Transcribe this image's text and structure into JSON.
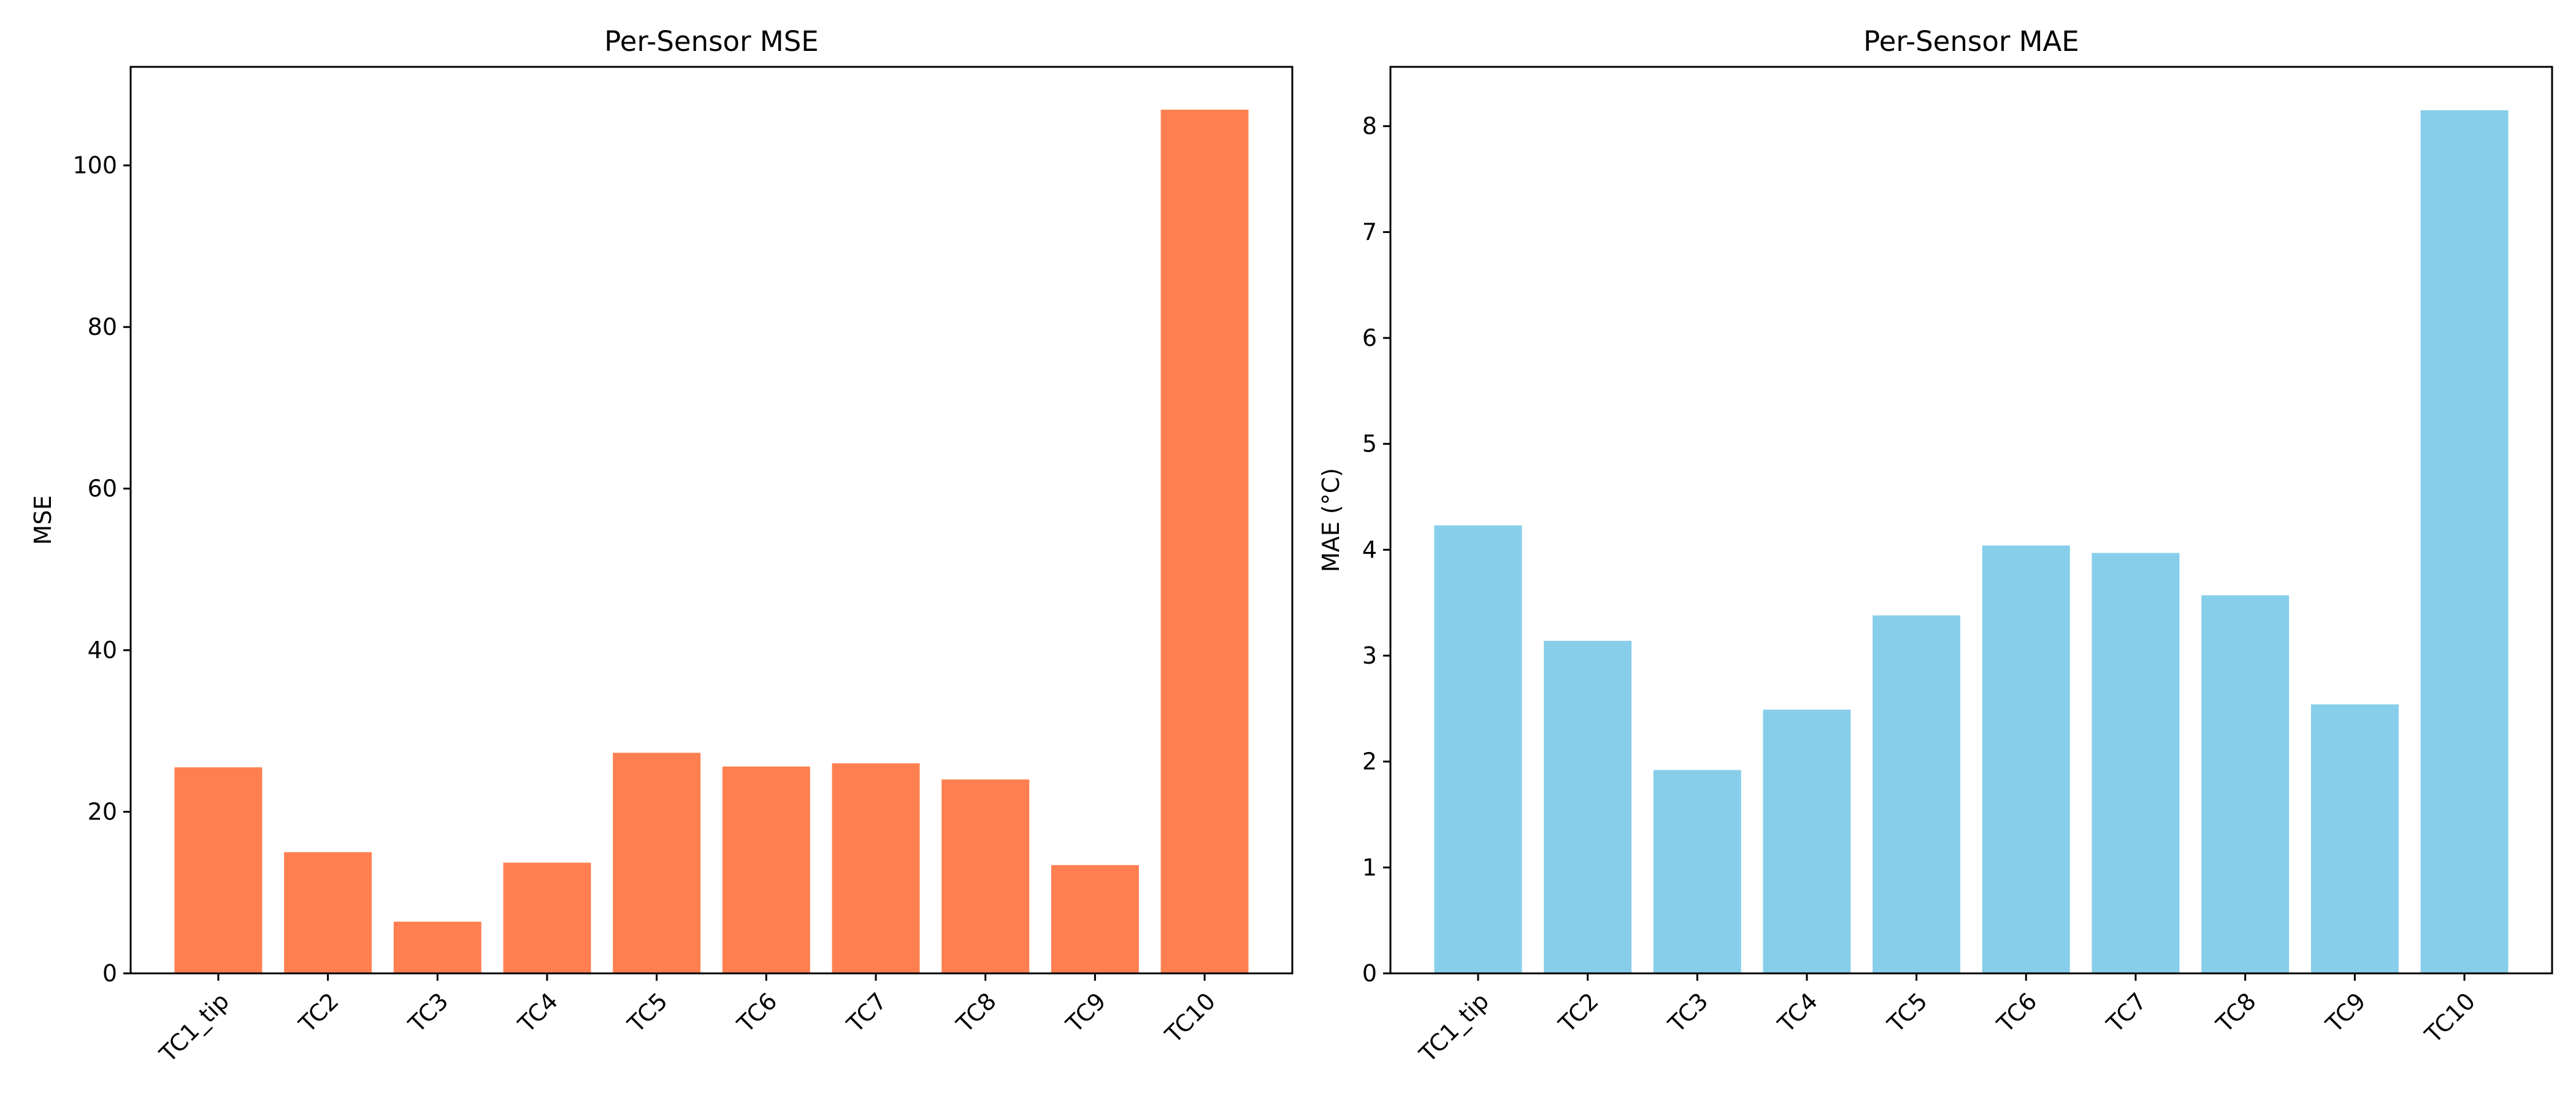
{
  "chart_data": [
    {
      "type": "bar",
      "title": "Per-Sensor MSE",
      "xlabel": "",
      "ylabel": "MSE",
      "categories": [
        "TC1_tip",
        "TC2",
        "TC3",
        "TC4",
        "TC5",
        "TC6",
        "TC7",
        "TC8",
        "TC9",
        "TC10"
      ],
      "values": [
        25.5,
        15.0,
        6.4,
        13.7,
        27.3,
        25.6,
        26.0,
        24.0,
        13.4,
        106.9
      ],
      "ylim": [
        0,
        112.2
      ],
      "yticks": [
        0,
        20,
        40,
        60,
        80,
        100
      ],
      "color": "#FF7F50",
      "grid": false
    },
    {
      "type": "bar",
      "title": "Per-Sensor MAE",
      "xlabel": "",
      "ylabel": "MAE (°C)",
      "categories": [
        "TC1_tip",
        "TC2",
        "TC3",
        "TC4",
        "TC5",
        "TC6",
        "TC7",
        "TC8",
        "TC9",
        "TC10"
      ],
      "values": [
        4.23,
        3.14,
        1.92,
        2.49,
        3.38,
        4.04,
        3.97,
        3.57,
        2.54,
        8.15
      ],
      "ylim": [
        0,
        8.56
      ],
      "yticks": [
        0,
        1,
        2,
        3,
        4,
        5,
        6,
        7,
        8
      ],
      "color": "#87CEEB",
      "grid": false
    }
  ]
}
